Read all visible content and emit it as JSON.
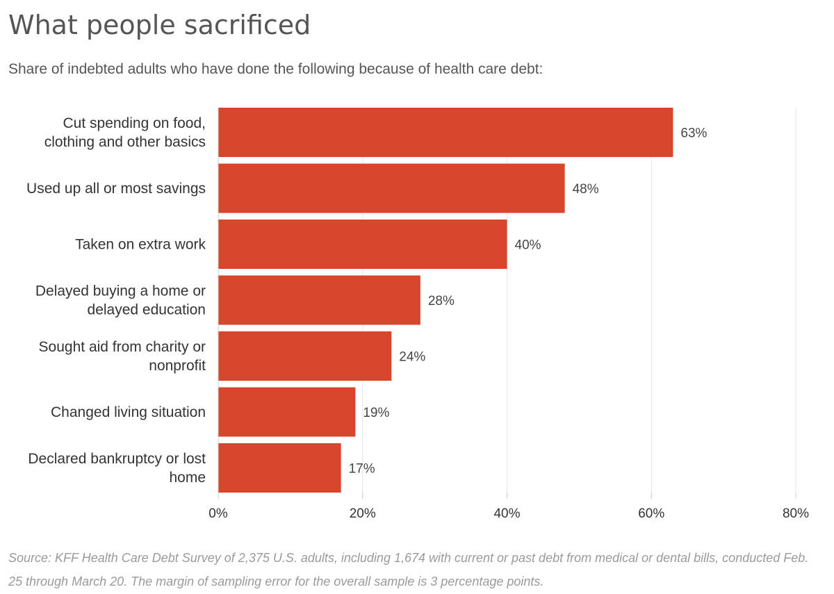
{
  "chart_data": {
    "type": "bar",
    "orientation": "horizontal",
    "title": "What people sacrificed",
    "subtitle": "Share of indebted adults who have done the following because of health care debt:",
    "categories": [
      [
        "Cut spending on food,",
        "clothing and other basics"
      ],
      [
        "Used up all or most savings"
      ],
      [
        "Taken on extra work"
      ],
      [
        "Delayed buying a home or",
        "delayed education"
      ],
      [
        "Sought aid from charity or",
        "nonprofit"
      ],
      [
        "Changed living situation"
      ],
      [
        "Declared bankruptcy or lost",
        "home"
      ]
    ],
    "values": [
      63,
      48,
      40,
      28,
      24,
      19,
      17
    ],
    "value_labels": [
      "63%",
      "48%",
      "40%",
      "28%",
      "24%",
      "19%",
      "17%"
    ],
    "xlim": [
      0,
      80
    ],
    "xticks": [
      0,
      20,
      40,
      60,
      80
    ],
    "xtick_labels": [
      "0%",
      "20%",
      "40%",
      "60%",
      "80%"
    ],
    "grid": true,
    "legend": "none",
    "bar_color": "#d7452b",
    "source": "Source: KFF Health Care Debt Survey of 2,375 U.S. adults, including 1,674 with current or past debt from medical or dental bills, conducted Feb. 25 through March 20. The margin of sampling error for the overall sample is 3 percentage points."
  }
}
